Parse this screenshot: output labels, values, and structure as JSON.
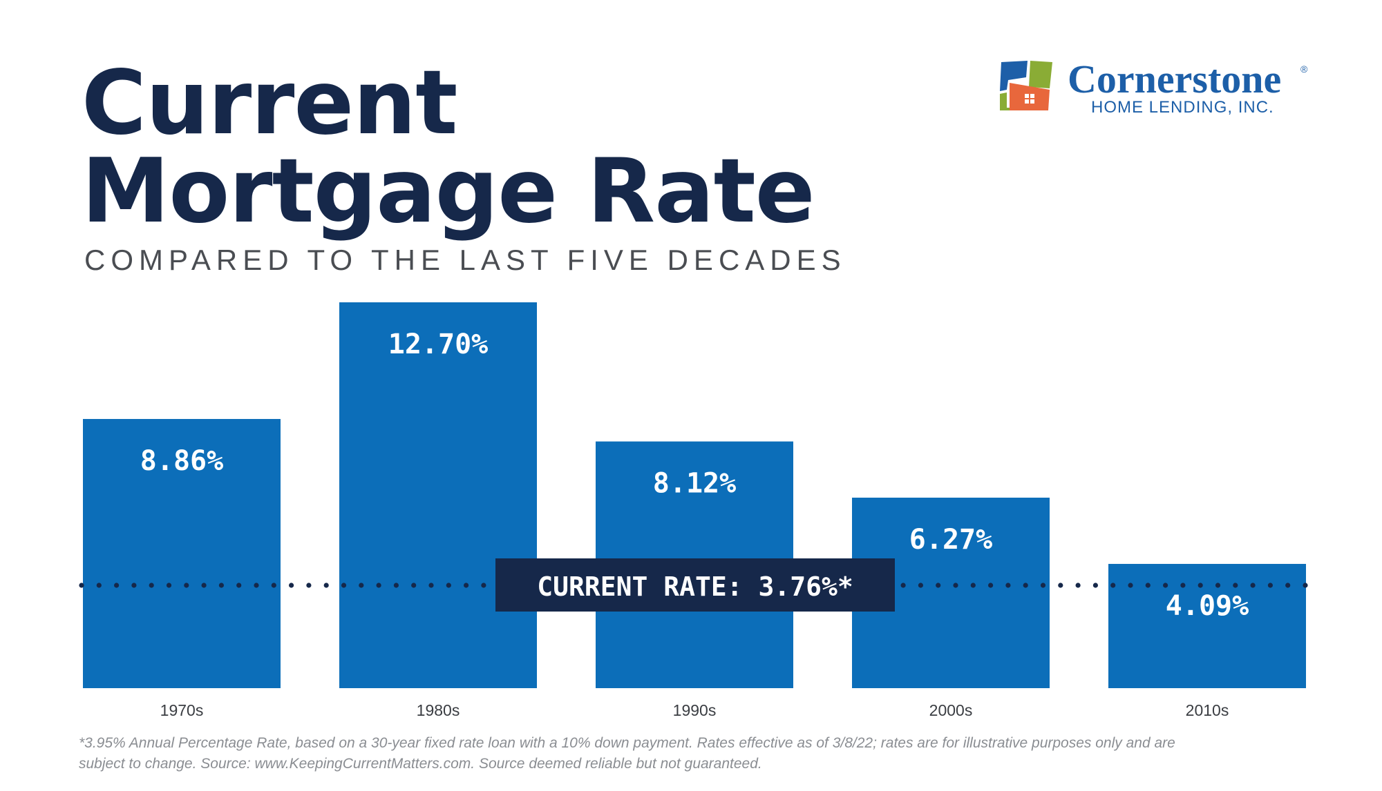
{
  "header": {
    "title_line1": "Current",
    "title_line2": "Mortgage Rate",
    "subtitle": "COMPARED TO THE LAST FIVE DECADES"
  },
  "logo": {
    "name": "Cornerstone",
    "registered": "®",
    "tagline": "HOME LENDING, INC.",
    "colors": {
      "blue": "#1d5fa8",
      "green": "#8aac35",
      "orange": "#e8673c"
    }
  },
  "chart_data": {
    "type": "bar",
    "categories": [
      "1970s",
      "1980s",
      "1990s",
      "2000s",
      "2010s"
    ],
    "values": [
      8.86,
      12.7,
      8.12,
      6.27,
      4.09
    ],
    "value_labels": [
      "8.86%",
      "12.70%",
      "8.12%",
      "6.27%",
      "4.09%"
    ],
    "reference_line": {
      "value": 3.76,
      "label": "CURRENT RATE: 3.76%*",
      "style": "dotted"
    },
    "ylim": [
      0,
      12.7
    ],
    "grid": false,
    "colors": {
      "bar": "#0c6eb9",
      "label_box": "#16284a",
      "dots": "#16284a"
    }
  },
  "footnote": {
    "line1": "*3.95% Annual Percentage Rate, based on a 30-year fixed rate loan with a 10% down payment. Rates effective as of 3/8/22; rates are for illustrative purposes only and are",
    "line2": "subject to change. Source: www.KeepingCurrentMatters.com. Source deemed reliable but not guaranteed."
  }
}
